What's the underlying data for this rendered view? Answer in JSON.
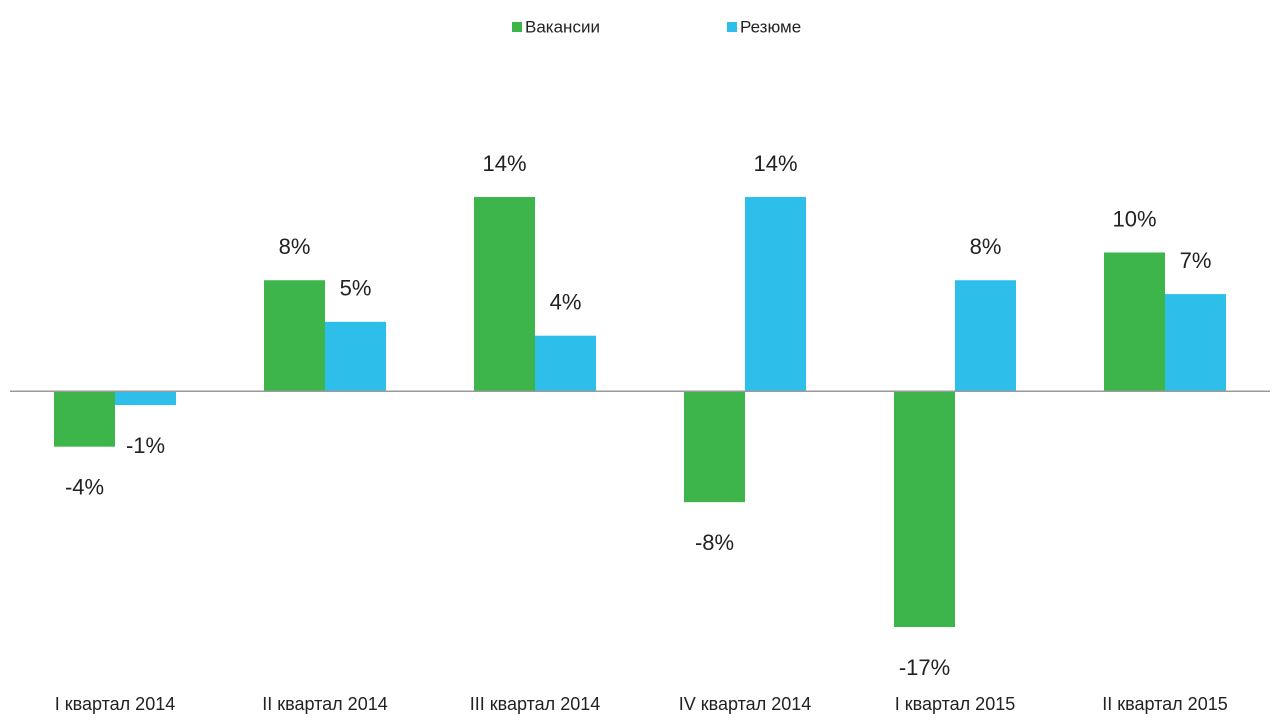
{
  "chart_data": {
    "type": "bar",
    "categories": [
      "I квартал 2014",
      "II квартал 2014",
      "III квартал 2014",
      "IV квартал 2014",
      "I квартал 2015",
      "II квартал 2015"
    ],
    "series": [
      {
        "name": "Вакансии",
        "color": "#3db54a",
        "values": [
          -4,
          8,
          14,
          -8,
          -17,
          10
        ],
        "value_labels": [
          "-4%",
          "8%",
          "14%",
          "-8%",
          "-17%",
          "10%"
        ]
      },
      {
        "name": "Резюме",
        "color": "#2dbfea",
        "values": [
          -1,
          5,
          4,
          14,
          8,
          7
        ],
        "value_labels": [
          "-1%",
          "5%",
          "4%",
          "14%",
          "8%",
          "7%"
        ]
      }
    ],
    "legend": "top"
  }
}
